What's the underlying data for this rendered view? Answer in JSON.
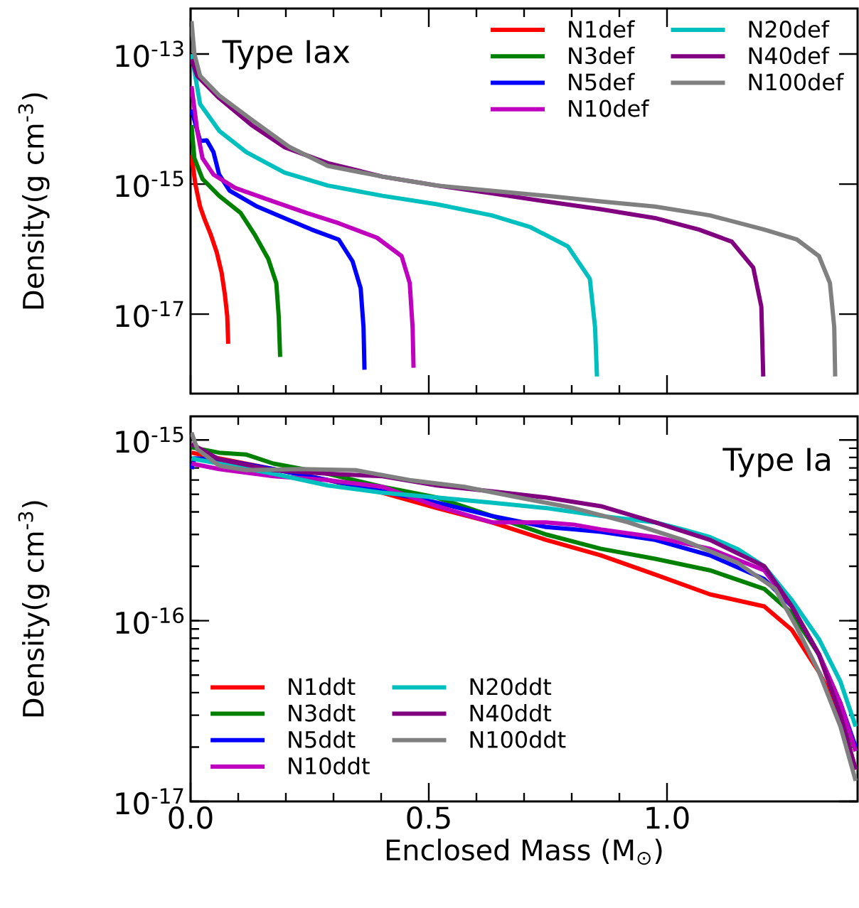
{
  "chart_data": [
    {
      "type": "line",
      "ylabel": "Density(g cm$^{-3}$)",
      "annotations": [
        "Type Iax"
      ],
      "log": "y",
      "legend": "top right",
      "marker": "none",
      "tick_labels": "y",
      "xlim": [
        0,
        1.4
      ],
      "ylim": [
        6e-19,
        5e-13
      ],
      "xticks": [
        0,
        0.5,
        1
      ],
      "yticks": [
        {
          "value": 1e-17,
          "label": "10$^{-17}$"
        },
        {
          "value": 1e-15,
          "label": "10$^{-15}$"
        },
        {
          "value": 1e-13,
          "label": "10$^{-13}$"
        }
      ],
      "series": [
        {
          "name": "N1def",
          "color": "#ff0000",
          "x": [
            0.002,
            0.01,
            0.02,
            0.03,
            0.042,
            0.055,
            0.065,
            0.072,
            0.077,
            0.079
          ],
          "values": [
            2.8e-15,
            1e-15,
            4.5e-16,
            2.8e-16,
            1.7e-16,
            8.9e-17,
            4.4e-17,
            2e-17,
            9.3e-18,
            3.5e-18
          ]
        },
        {
          "name": "N3def",
          "color": "#008000",
          "x": [
            0.002,
            0.008,
            0.025,
            0.06,
            0.105,
            0.134,
            0.163,
            0.18,
            0.185,
            0.188
          ],
          "values": [
            8.1e-15,
            2.5e-15,
            1.2e-15,
            6.6e-16,
            3.6e-16,
            1.7e-16,
            7.1e-17,
            3e-17,
            9.3e-18,
            2.2e-18
          ]
        },
        {
          "name": "N5def",
          "color": "#0000ff",
          "x": [
            0.002,
            0.02,
            0.034,
            0.048,
            0.06,
            0.082,
            0.14,
            0.197,
            0.254,
            0.311,
            0.34,
            0.357,
            0.363,
            0.365
          ],
          "values": [
            1.4e-14,
            4.6e-15,
            4.7e-15,
            3.1e-15,
            1.4e-15,
            7.9e-16,
            4.5e-16,
            3e-16,
            2e-16,
            1.4e-16,
            6.5e-17,
            2.5e-17,
            6.3e-18,
            1.4e-18
          ]
        },
        {
          "name": "N10def",
          "color": "#bf00bf",
          "x": [
            0.002,
            0.014,
            0.025,
            0.048,
            0.094,
            0.174,
            0.243,
            0.311,
            0.391,
            0.443,
            0.46,
            0.466,
            0.468
          ],
          "values": [
            3.2e-14,
            6.6e-15,
            2.5e-15,
            1.4e-15,
            8.7e-16,
            5.4e-16,
            3.6e-16,
            2.5e-16,
            1.5e-16,
            7.8e-17,
            3e-17,
            6.3e-18,
            1.5e-18
          ]
        },
        {
          "name": "N20def",
          "color": "#00bfbf",
          "x": [
            0.002,
            0.02,
            0.06,
            0.117,
            0.197,
            0.288,
            0.403,
            0.517,
            0.632,
            0.712,
            0.792,
            0.838,
            0.849,
            0.853
          ],
          "values": [
            1e-13,
            1.7e-14,
            6.6e-15,
            3.1e-15,
            1.5e-15,
            9.5e-16,
            6.6e-16,
            4.9e-16,
            3.3e-16,
            2.2e-16,
            1.1e-16,
            3.5e-17,
            6.3e-18,
            1.1e-18
          ]
        },
        {
          "name": "N40def",
          "color": "#800080",
          "x": [
            0.002,
            0.014,
            0.06,
            0.128,
            0.197,
            0.288,
            0.403,
            0.517,
            0.632,
            0.746,
            0.861,
            0.975,
            1.067,
            1.136,
            1.181,
            1.198,
            1.202
          ],
          "values": [
            8.3e-14,
            4.6e-14,
            2.1e-14,
            8.1e-15,
            3.7e-15,
            2.1e-15,
            1.3e-15,
            9.5e-16,
            7.2e-16,
            5.4e-16,
            4.1e-16,
            3e-16,
            2e-16,
            1.3e-16,
            5.2e-17,
            1.3e-17,
            1.1e-18
          ]
        },
        {
          "name": "N100def",
          "color": "#808080",
          "x": [
            0.002,
            0.008,
            0.02,
            0.06,
            0.128,
            0.208,
            0.288,
            0.403,
            0.517,
            0.632,
            0.746,
            0.861,
            0.975,
            1.09,
            1.204,
            1.273,
            1.319,
            1.342,
            1.351,
            1.353
          ],
          "values": [
            3.2e-13,
            1e-13,
            4.6e-14,
            2.3e-14,
            9.8e-15,
            3.7e-15,
            1.9e-15,
            1.3e-15,
            9.5e-16,
            7.9e-16,
            6.6e-16,
            5.4e-16,
            4.5e-16,
            3.3e-16,
            2e-16,
            1.4e-16,
            7.8e-17,
            3e-17,
            6.3e-18,
            1.1e-18
          ]
        }
      ]
    },
    {
      "type": "line",
      "xlabel": "Enclosed Mass (M$_{⊙}$)",
      "ylabel": "Density(g cm$^{-3}$)",
      "annotations": [
        "Type Ia"
      ],
      "log": "y",
      "legend": "bottom left",
      "marker": "none",
      "xlim": [
        0,
        1.4
      ],
      "ylim": [
        1e-17,
        1.35e-15
      ],
      "xticks": [
        {
          "value": 0,
          "label": "0.0"
        },
        0.5,
        {
          "value": 1,
          "label": "1.0"
        }
      ],
      "yticks": [
        {
          "value": 1e-17,
          "label": "10$^{-17}$"
        },
        {
          "value": 1e-16,
          "label": "10$^{-16}$"
        },
        {
          "value": 1e-15,
          "label": "10$^{-15}$"
        }
      ],
      "series": [
        {
          "name": "N1ddt",
          "color": "#ff0000",
          "x": [
            0.002,
            0.06,
            0.174,
            0.288,
            0.403,
            0.517,
            0.632,
            0.746,
            0.861,
            0.975,
            1.09,
            1.204,
            1.262,
            1.319,
            1.364,
            1.396
          ],
          "values": [
            8.5e-16,
            7.9e-16,
            6.9e-16,
            6e-16,
            5.1e-16,
            4.2e-16,
            3.5e-16,
            2.8e-16,
            2.3e-16,
            1.8e-16,
            1.4e-16,
            1.2e-16,
            8.9e-17,
            5.2e-17,
            3e-17,
            1.5e-17
          ]
        },
        {
          "name": "N3ddt",
          "color": "#008000",
          "x": [
            0.002,
            0.06,
            0.117,
            0.174,
            0.288,
            0.403,
            0.517,
            0.632,
            0.746,
            0.861,
            0.975,
            1.09,
            1.204,
            1.262,
            1.319,
            1.364,
            1.396
          ],
          "values": [
            9.1e-16,
            8.5e-16,
            8.3e-16,
            7.4e-16,
            6.5e-16,
            5.5e-16,
            4.8e-16,
            3.8e-16,
            3e-16,
            2.5e-16,
            2.2e-16,
            1.9e-16,
            1.5e-16,
            1.1e-16,
            6.5e-17,
            3.2e-17,
            1.9e-17
          ]
        },
        {
          "name": "N5ddt",
          "color": "#0000ff",
          "x": [
            0.002,
            0.008,
            0.06,
            0.174,
            0.288,
            0.403,
            0.517,
            0.632,
            0.746,
            0.804,
            0.861,
            0.975,
            1.09,
            1.204,
            1.262,
            1.319,
            1.364,
            1.396
          ],
          "values": [
            6.9e-16,
            7.9e-16,
            7.8e-16,
            6.9e-16,
            6e-16,
            5.2e-16,
            4.5e-16,
            3.8e-16,
            3.3e-16,
            3.2e-16,
            3.1e-16,
            2.8e-16,
            2.3e-16,
            1.7e-16,
            1.2e-16,
            6.5e-17,
            3.5e-17,
            2e-17
          ]
        },
        {
          "name": "N10ddt",
          "color": "#bf00bf",
          "x": [
            0.002,
            0.06,
            0.174,
            0.288,
            0.403,
            0.517,
            0.632,
            0.689,
            0.746,
            0.804,
            0.861,
            0.975,
            1.09,
            1.204,
            1.262,
            1.319,
            1.364,
            1.396
          ],
          "values": [
            7.4e-16,
            6.9e-16,
            6.3e-16,
            6e-16,
            5.5e-16,
            4.3e-16,
            3.5e-16,
            3.5e-16,
            3.5e-16,
            3.4e-16,
            3.2e-16,
            2.9e-16,
            2.5e-16,
            1.9e-16,
            1.2e-16,
            6.5e-17,
            3.5e-17,
            1.9e-17
          ]
        },
        {
          "name": "N20ddt",
          "color": "#00bfbf",
          "x": [
            0.002,
            0.06,
            0.174,
            0.288,
            0.403,
            0.517,
            0.632,
            0.746,
            0.861,
            0.975,
            1.033,
            1.09,
            1.147,
            1.204,
            1.262,
            1.319,
            1.364,
            1.396
          ],
          "values": [
            7.9e-16,
            7.4e-16,
            6.5e-16,
            5.6e-16,
            5.1e-16,
            4.8e-16,
            4.5e-16,
            4.2e-16,
            3.8e-16,
            3.5e-16,
            3.2e-16,
            2.9e-16,
            2.5e-16,
            2e-16,
            1.3e-16,
            7.9e-17,
            4.6e-17,
            2.6e-17
          ]
        },
        {
          "name": "N40ddt",
          "color": "#800080",
          "x": [
            0.002,
            0.06,
            0.174,
            0.288,
            0.403,
            0.517,
            0.632,
            0.746,
            0.861,
            0.975,
            1.09,
            1.204,
            1.262,
            1.319,
            1.364,
            1.396
          ],
          "values": [
            9.5e-16,
            7.8e-16,
            6.8e-16,
            6.5e-16,
            6.3e-16,
            5.6e-16,
            5.2e-16,
            4.8e-16,
            4.3e-16,
            3.5e-16,
            2.8e-16,
            2e-16,
            1.2e-16,
            6.5e-17,
            3e-17,
            1.5e-17
          ]
        },
        {
          "name": "N100ddt",
          "color": "#808080",
          "x": [
            0.002,
            0.014,
            0.06,
            0.117,
            0.231,
            0.346,
            0.46,
            0.575,
            0.689,
            0.804,
            0.918,
            1.033,
            1.147,
            1.227,
            1.273,
            1.319,
            1.364,
            1.396
          ],
          "values": [
            1.1e-15,
            8.9e-16,
            7.2e-16,
            6.8e-16,
            6.9e-16,
            6.8e-16,
            6e-16,
            5.5e-16,
            4.8e-16,
            4.2e-16,
            3.5e-16,
            2.8e-16,
            2.1e-16,
            1.5e-16,
            9.1e-17,
            5.2e-17,
            2.6e-17,
            1.3e-17
          ]
        }
      ]
    }
  ]
}
